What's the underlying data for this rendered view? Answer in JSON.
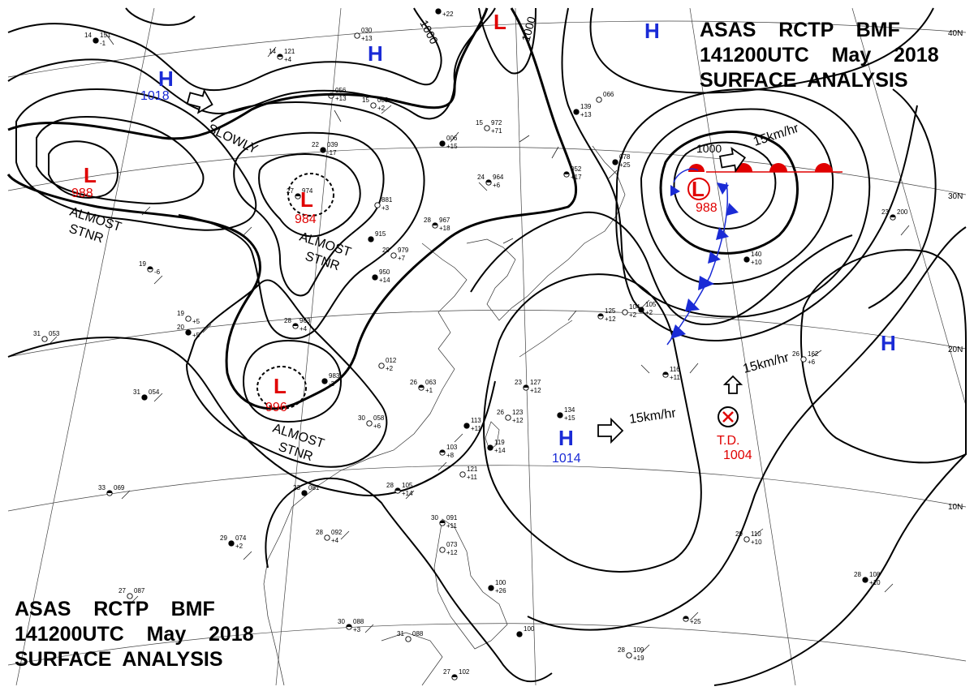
{
  "header": {
    "line1": "ASAS    RCTP    BMF",
    "line2": "141200UTC    May    2018",
    "line3": "SURFACE  ANALYSIS"
  },
  "colors": {
    "high": "#1a2bd6",
    "low": "#e00000",
    "cold_front": "#1a2bd6",
    "warm_front": "#e00000",
    "isobar": "#000000"
  },
  "lat_labels": [
    "40N",
    "30N",
    "20N",
    "10N"
  ],
  "isobar_labels": [
    "1000",
    "1000",
    "1000"
  ],
  "pressure_centers": [
    {
      "id": "h-nw",
      "type": "H",
      "value": "1018"
    },
    {
      "id": "h-top-center",
      "type": "H",
      "value": ""
    },
    {
      "id": "h-top-right",
      "type": "H",
      "value": ""
    },
    {
      "id": "h-east",
      "type": "H",
      "value": ""
    },
    {
      "id": "h-south",
      "type": "H",
      "value": "1014"
    },
    {
      "id": "l-top",
      "type": "L",
      "value": ""
    },
    {
      "id": "l-west",
      "type": "L",
      "value": "988"
    },
    {
      "id": "l-mongolia",
      "type": "L",
      "value": "984"
    },
    {
      "id": "l-south-china",
      "type": "L",
      "value": "996"
    },
    {
      "id": "l-japan",
      "type": "L",
      "value": "988"
    },
    {
      "id": "td",
      "type": "T.D.",
      "value": "1004"
    }
  ],
  "motion_labels": [
    "SLOWLY",
    "15km/hr",
    "15km/hr",
    "15km/hr"
  ],
  "stationary_labels": [
    {
      "line1": "ALMOST",
      "line2": "STNR"
    },
    {
      "line1": "ALMOST",
      "line2": "STNR"
    },
    {
      "line1": "ALMOST",
      "line2": "STNR"
    }
  ],
  "stations": [
    {
      "t": "14",
      "p": "151",
      "d": "-1"
    },
    {
      "t": "14",
      "p": "121",
      "d": "+4"
    },
    {
      "t": "",
      "p": "030",
      "d": "+13"
    },
    {
      "t": "",
      "p": "",
      "d": "+22"
    },
    {
      "t": "",
      "p": "056",
      "d": "+13"
    },
    {
      "t": "15",
      "p": "003",
      "d": "+2"
    },
    {
      "t": "22",
      "p": "039",
      "d": "-17"
    },
    {
      "t": "27",
      "p": "974",
      "d": ""
    },
    {
      "t": "15",
      "p": "972",
      "d": "+71"
    },
    {
      "t": "",
      "p": "006",
      "d": "+15"
    },
    {
      "t": "24",
      "p": "964",
      "d": "+6"
    },
    {
      "t": "",
      "p": "881",
      "d": "+3"
    },
    {
      "t": "",
      "p": "915",
      "d": ""
    },
    {
      "t": "28",
      "p": "967",
      "d": "+18"
    },
    {
      "t": "29",
      "p": "979",
      "d": "+7"
    },
    {
      "t": "",
      "p": "950",
      "d": "+14"
    },
    {
      "t": "28",
      "p": "963",
      "d": "+4"
    },
    {
      "t": "",
      "p": "012",
      "d": "+2"
    },
    {
      "t": "",
      "p": "983",
      "d": "-3"
    },
    {
      "t": "26",
      "p": "063",
      "d": "+1"
    },
    {
      "t": "30",
      "p": "058",
      "d": "+6"
    },
    {
      "t": "",
      "p": "113",
      "d": "+11"
    },
    {
      "t": "",
      "p": "103",
      "d": "+8"
    },
    {
      "t": "",
      "p": "121",
      "d": "+11"
    },
    {
      "t": "",
      "p": "119",
      "d": "+14"
    },
    {
      "t": "28",
      "p": "105",
      "d": "+14"
    },
    {
      "t": "28",
      "p": "092",
      "d": "+4"
    },
    {
      "t": "29",
      "p": "074",
      "d": "+2"
    },
    {
      "t": "30",
      "p": "091",
      "d": "+11"
    },
    {
      "t": "",
      "p": "073",
      "d": "+12"
    },
    {
      "t": "",
      "p": "100",
      "d": "+26"
    },
    {
      "t": "30",
      "p": "088",
      "d": "+3"
    },
    {
      "t": "31",
      "p": "088",
      "d": ""
    },
    {
      "t": "",
      "p": "100",
      "d": ""
    },
    {
      "t": "27",
      "p": "102",
      "d": ""
    },
    {
      "t": "31",
      "p": "053",
      "d": ""
    },
    {
      "t": "31",
      "p": "054",
      "d": ""
    },
    {
      "t": "33",
      "p": "069",
      "d": ""
    },
    {
      "t": "27",
      "p": "087",
      "d": ""
    },
    {
      "t": "23",
      "p": "081",
      "d": ""
    },
    {
      "t": "19",
      "p": "",
      "d": "-6"
    },
    {
      "t": "19",
      "p": "",
      "d": "+5"
    },
    {
      "t": "20",
      "p": "",
      "d": "+5"
    },
    {
      "t": "23",
      "p": "127",
      "d": "+12"
    },
    {
      "t": "26",
      "p": "123",
      "d": "+12"
    },
    {
      "t": "",
      "p": "134",
      "d": "+15"
    },
    {
      "t": "",
      "p": "125",
      "d": "+12"
    },
    {
      "t": "",
      "p": "104",
      "d": "+2"
    },
    {
      "t": "",
      "p": "105",
      "d": "+2"
    },
    {
      "t": "",
      "p": "116",
      "d": "+11"
    },
    {
      "t": "26",
      "p": "162",
      "d": "+6"
    },
    {
      "t": "",
      "p": "140",
      "d": "+10"
    },
    {
      "t": "23",
      "p": "200",
      "d": ""
    },
    {
      "t": "29",
      "p": "110",
      "d": "+10"
    },
    {
      "t": "28",
      "p": "108",
      "d": "+10"
    },
    {
      "t": "",
      "p": "",
      "d": "+25"
    },
    {
      "t": "28",
      "p": "109",
      "d": "+19"
    },
    {
      "t": "",
      "p": "078",
      "d": "+25"
    },
    {
      "t": "",
      "p": "052",
      "d": "+17"
    },
    {
      "t": "",
      "p": "066",
      "d": ""
    },
    {
      "t": "",
      "p": "139",
      "d": "+13"
    }
  ]
}
